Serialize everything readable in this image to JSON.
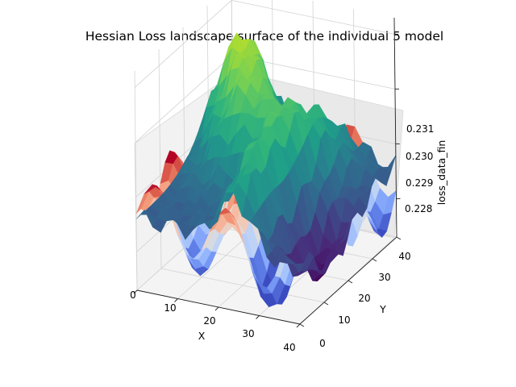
{
  "chart_data": {
    "type": "surface",
    "title": "Hessian Loss landscape surface of the individual 5 model",
    "xlabel": "X",
    "ylabel": "Y",
    "zlabel": "loss_data_fin",
    "xlim": [
      0,
      40
    ],
    "ylim": [
      0,
      40
    ],
    "zlim": [
      0.2273,
      0.2313
    ],
    "x_ticks": [
      "0",
      "10",
      "20",
      "30",
      "40"
    ],
    "y_ticks": [
      "0",
      "10",
      "20",
      "30",
      "40"
    ],
    "z_ticks": [
      "0.228",
      "0.229",
      "0.230",
      "0.231"
    ],
    "grid": true,
    "colormaps": [
      "coolwarm",
      "viridis"
    ],
    "surfaces": [
      {
        "name": "",
        "colormap": "coolwarm",
        "z_range": [
          0.2276,
          0.2292
        ]
      },
      {
        "name": "",
        "colormap": "viridis",
        "z_range": [
          0.2275,
          0.2311
        ]
      }
    ]
  }
}
